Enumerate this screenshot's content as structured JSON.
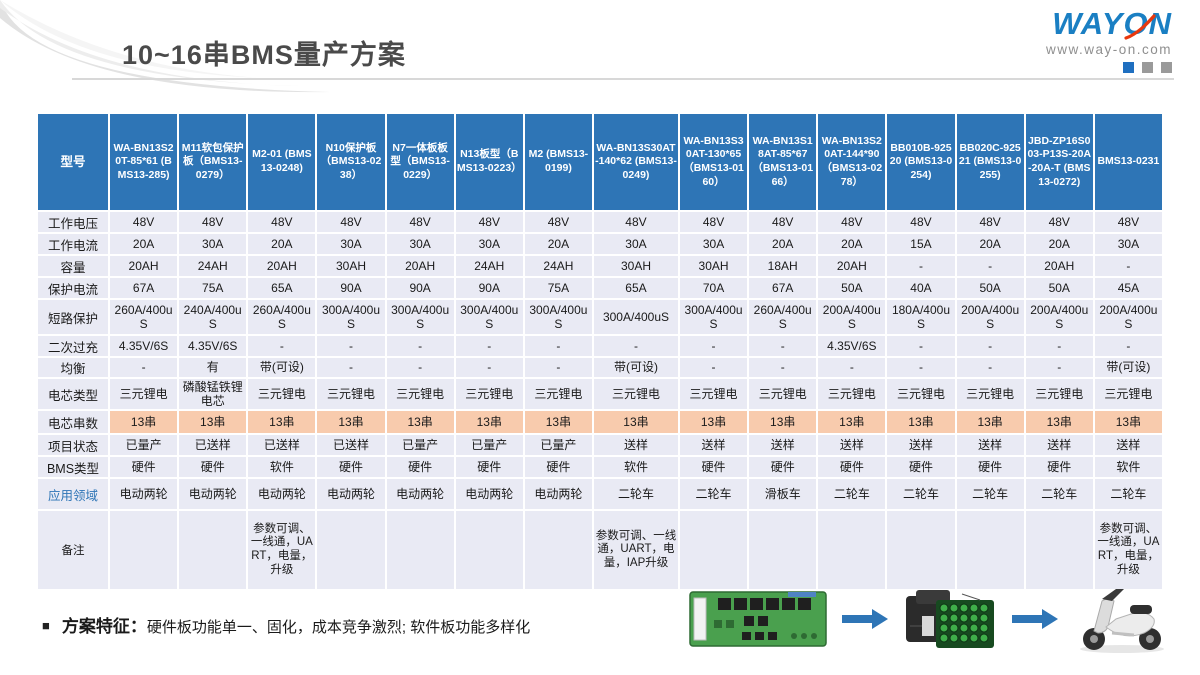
{
  "title": "10~16串BMS量产方案",
  "logo": {
    "name": "WAYON",
    "url": "www.way-on.com"
  },
  "colors": {
    "header_bg": "#2E75B6",
    "row_bg": "#E9EAF4",
    "highlight_bg": "#F8CBAD",
    "accent_blue": "#2E75B6",
    "logo_blue": "#1A7FC3",
    "logo_red": "#E8380D"
  },
  "table": {
    "corner_label": "型号",
    "columns": [
      "WA-BN13S20T-85*61 (BMS13-285)",
      "M11软包保护板（BMS13-0279）",
      "M2-01 (BMS13-0248)",
      "N10保护板（BMS13-0238）",
      "N7一体板板型（BMS13-0229）",
      "N13板型（BMS13-0223）",
      "M2 (BMS13-0199)",
      "WA-BN13S30AT-140*62 (BMS13-0249)",
      "WA-BN13S30AT-130*65（BMS13-0160）",
      "WA-BN13S18AT-85*67（BMS13-0166）",
      "WA-BN13S20AT-144*90（BMS13-0278）",
      "BB010B-92520 (BMS13-0254)",
      "BB020C-92521 (BMS13-0255)",
      "JBD-ZP16S003-P13S-20A-20A-T (BMS13-0272)",
      "BMS13-0231"
    ],
    "rows": [
      {
        "label": "工作电压",
        "values": [
          "48V",
          "48V",
          "48V",
          "48V",
          "48V",
          "48V",
          "48V",
          "48V",
          "48V",
          "48V",
          "48V",
          "48V",
          "48V",
          "48V",
          "48V"
        ]
      },
      {
        "label": "工作电流",
        "values": [
          "20A",
          "30A",
          "20A",
          "30A",
          "30A",
          "30A",
          "20A",
          "30A",
          "30A",
          "20A",
          "20A",
          "15A",
          "20A",
          "20A",
          "30A"
        ]
      },
      {
        "label": "容量",
        "values": [
          "20AH",
          "24AH",
          "20AH",
          "30AH",
          "20AH",
          "24AH",
          "24AH",
          "30AH",
          "30AH",
          "18AH",
          "20AH",
          "-",
          "-",
          "20AH",
          "-"
        ]
      },
      {
        "label": "保护电流",
        "values": [
          "67A",
          "75A",
          "65A",
          "90A",
          "90A",
          "90A",
          "75A",
          "65A",
          "70A",
          "67A",
          "50A",
          "40A",
          "50A",
          "50A",
          "45A"
        ]
      },
      {
        "label": "短路保护",
        "values": [
          "260A/400uS",
          "240A/400uS",
          "260A/400uS",
          "300A/400uS",
          "300A/400uS",
          "300A/400uS",
          "300A/400uS",
          "300A/400uS",
          "300A/400uS",
          "260A/400uS",
          "200A/400uS",
          "180A/400uS",
          "200A/400uS",
          "200A/400uS",
          "200A/400uS"
        ]
      },
      {
        "label": "二次过充",
        "values": [
          "4.35V/6S",
          "4.35V/6S",
          "-",
          "-",
          "-",
          "-",
          "-",
          "-",
          "-",
          "-",
          "4.35V/6S",
          "-",
          "-",
          "-",
          "-"
        ]
      },
      {
        "label": "均衡",
        "values": [
          "-",
          "有",
          "带(可设)",
          "-",
          "-",
          "-",
          "-",
          "带(可设)",
          "-",
          "-",
          "-",
          "-",
          "-",
          "-",
          "带(可设)"
        ]
      },
      {
        "label": "电芯类型",
        "values": [
          "三元锂电",
          "磷酸锰铁锂电芯",
          "三元锂电",
          "三元锂电",
          "三元锂电",
          "三元锂电",
          "三元锂电",
          "三元锂电",
          "三元锂电",
          "三元锂电",
          "三元锂电",
          "三元锂电",
          "三元锂电",
          "三元锂电",
          "三元锂电"
        ]
      },
      {
        "label": "电芯串数",
        "highlight": true,
        "values": [
          "13串",
          "13串",
          "13串",
          "13串",
          "13串",
          "13串",
          "13串",
          "13串",
          "13串",
          "13串",
          "13串",
          "13串",
          "13串",
          "13串",
          "13串"
        ]
      },
      {
        "label": "项目状态",
        "values": [
          "已量产",
          "已送样",
          "已送样",
          "已送样",
          "已量产",
          "已量产",
          "已量产",
          "送样",
          "送样",
          "送样",
          "送样",
          "送样",
          "送样",
          "送样",
          "送样"
        ]
      },
      {
        "label": "BMS类型",
        "values": [
          "硬件",
          "硬件",
          "软件",
          "硬件",
          "硬件",
          "硬件",
          "硬件",
          "软件",
          "硬件",
          "硬件",
          "硬件",
          "硬件",
          "硬件",
          "硬件",
          "软件"
        ]
      },
      {
        "label": "应用领域",
        "label_blue": true,
        "values": [
          "电动两轮",
          "电动两轮",
          "电动两轮",
          "电动两轮",
          "电动两轮",
          "电动两轮",
          "电动两轮",
          "二轮车",
          "二轮车",
          "滑板车",
          "二轮车",
          "二轮车",
          "二轮车",
          "二轮车",
          "二轮车"
        ]
      },
      {
        "label": "备注",
        "values": [
          "",
          "",
          "参数可调、一线通，UART，电量，升级",
          "",
          "",
          "",
          "",
          "参数可调、一线通，UART，电量，IAP升级",
          "",
          "",
          "",
          "",
          "",
          "",
          "参数可调、一线通，UART，电量，升级"
        ]
      }
    ]
  },
  "footer": {
    "bullet_label": "方案特征：",
    "text": "硬件板功能单一、固化，成本竞争激烈; 软件板功能多样化"
  },
  "flow": {
    "items": [
      "bms-board",
      "battery-pack",
      "e-scooter"
    ]
  }
}
